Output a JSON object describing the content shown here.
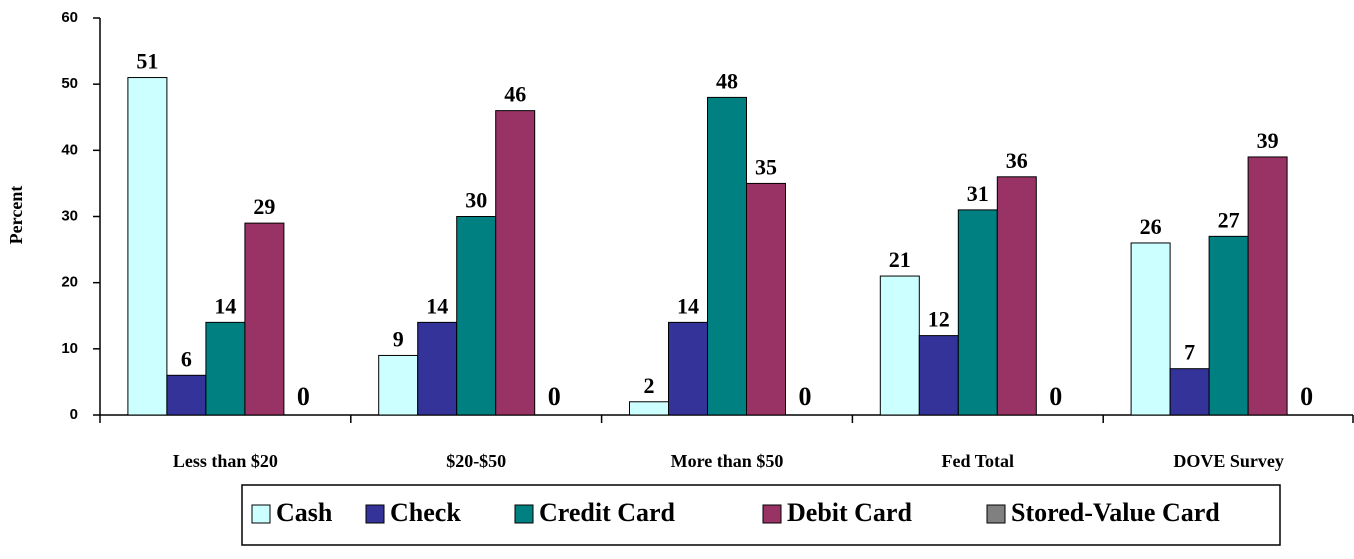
{
  "chart_data": {
    "type": "bar",
    "y_label": "Percent",
    "categories": [
      "Less than $20",
      "$20-$50",
      "More than $50",
      "Fed Total",
      "DOVE Survey"
    ],
    "series": [
      {
        "name": "Cash",
        "color": "#ccffff",
        "values": [
          51,
          9,
          2,
          21,
          26
        ]
      },
      {
        "name": "Check",
        "color": "#333399",
        "values": [
          6,
          14,
          14,
          12,
          7
        ]
      },
      {
        "name": "Credit Card",
        "color": "#008080",
        "values": [
          14,
          30,
          48,
          31,
          27
        ]
      },
      {
        "name": "Debit Card",
        "color": "#993366",
        "values": [
          29,
          46,
          35,
          36,
          39
        ]
      },
      {
        "name": "Stored-Value Card",
        "color": "#808080",
        "values": [
          0,
          0,
          0,
          0,
          0
        ]
      }
    ],
    "ylim": [
      0,
      60
    ],
    "yticks": [
      0,
      10,
      20,
      30,
      40,
      50,
      60
    ],
    "legend": "bottom"
  }
}
